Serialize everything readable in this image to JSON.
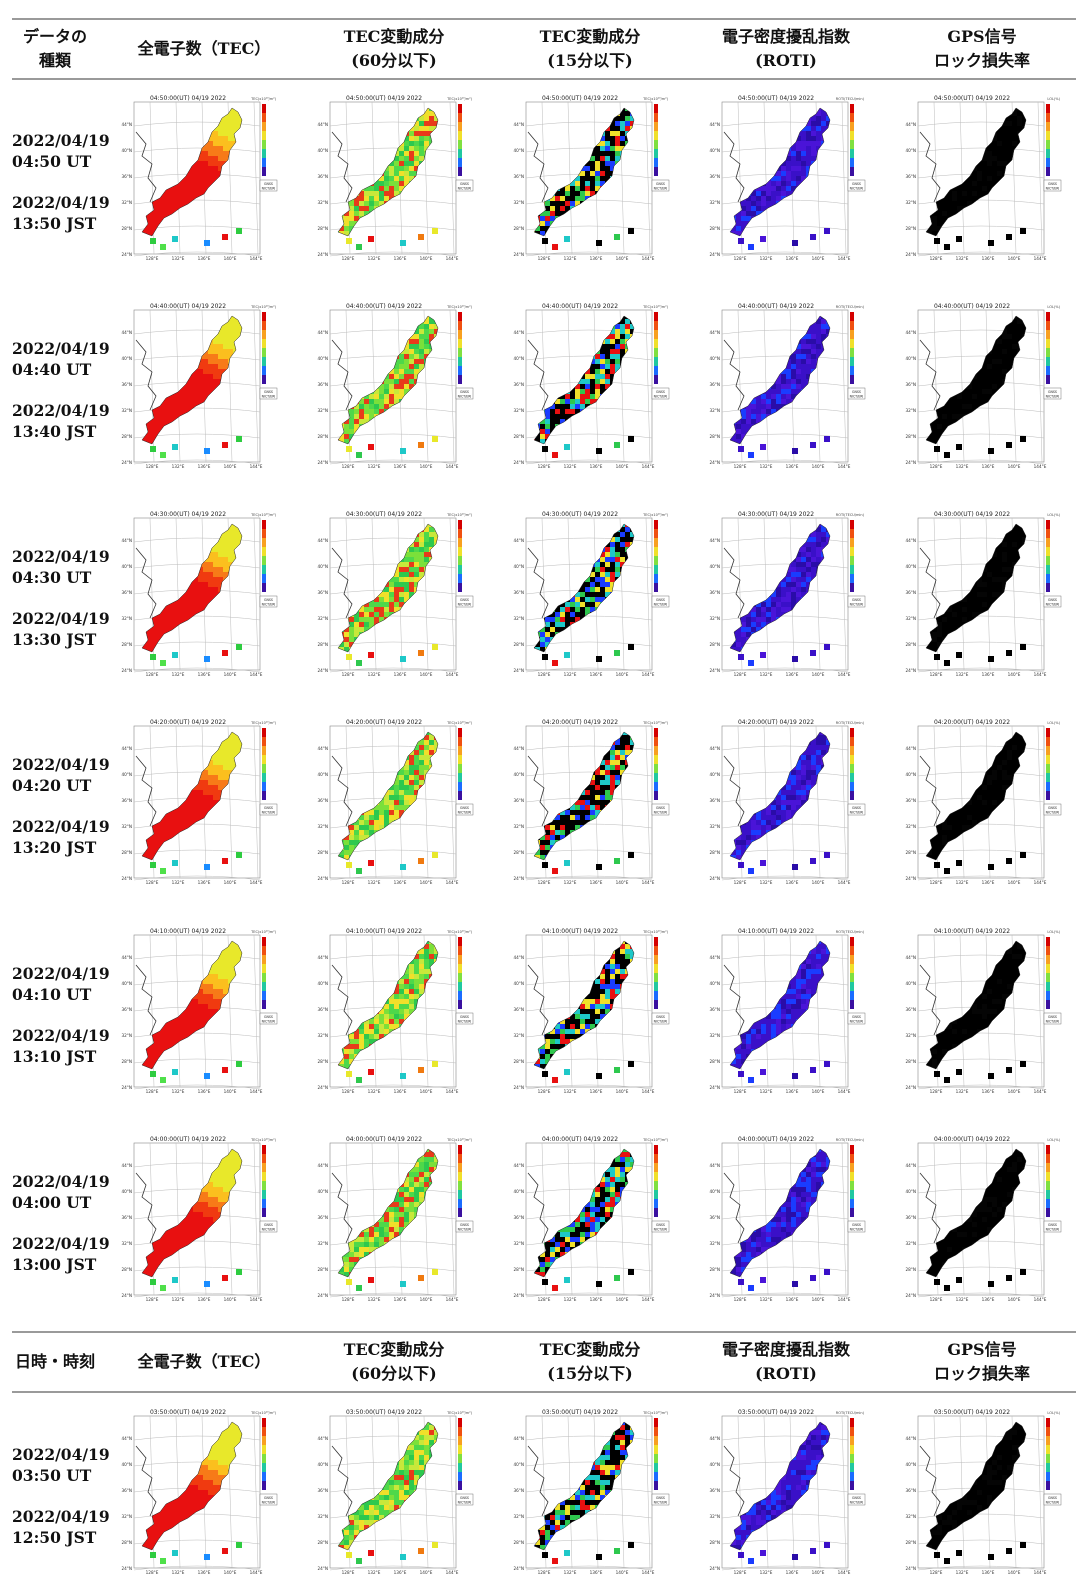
{
  "header_top": {
    "col0": [
      "データの",
      "種類"
    ],
    "col1": [
      "全電子数（TEC）"
    ],
    "col2": [
      "TEC変動成分",
      "(60分以下)"
    ],
    "col3": [
      "TEC変動成分",
      "(15分以下)"
    ],
    "col4": [
      "電子密度擾乱指数",
      "(ROTI)"
    ],
    "col5": [
      "GPS信号",
      "ロック損失率"
    ]
  },
  "header_mid": {
    "col0": [
      "日時・時刻"
    ],
    "col1": [
      "全電子数（TEC）"
    ],
    "col2": [
      "TEC変動成分",
      "(60分以下)"
    ],
    "col3": [
      "TEC変動成分",
      "(15分以下)"
    ],
    "col4": [
      "電子密度擾乱指数",
      "(ROTI)"
    ],
    "col5": [
      "GPS信号",
      "ロック損失率"
    ]
  },
  "rows": [
    {
      "date_ut": "2022/04/19",
      "time_ut": "04:50 UT",
      "date_jst": "2022/04/19",
      "time_jst": "13:50 JST",
      "map_title": "04:50:00(UT) 04/19 2022"
    },
    {
      "date_ut": "2022/04/19",
      "time_ut": "04:40 UT",
      "date_jst": "2022/04/19",
      "time_jst": "13:40 JST",
      "map_title": "04:40:00(UT) 04/19 2022"
    },
    {
      "date_ut": "2022/04/19",
      "time_ut": "04:30 UT",
      "date_jst": "2022/04/19",
      "time_jst": "13:30 JST",
      "map_title": "04:30:00(UT) 04/19 2022"
    },
    {
      "date_ut": "2022/04/19",
      "time_ut": "04:20 UT",
      "date_jst": "2022/04/19",
      "time_jst": "13:20 JST",
      "map_title": "04:20:00(UT) 04/19 2022"
    },
    {
      "date_ut": "2022/04/19",
      "time_ut": "04:10 UT",
      "date_jst": "2022/04/19",
      "time_jst": "13:10 JST",
      "map_title": "04:10:00(UT) 04/19 2022"
    },
    {
      "date_ut": "2022/04/19",
      "time_ut": "04:00 UT",
      "date_jst": "2022/04/19",
      "time_jst": "13:00 JST",
      "map_title": "04:00:00(UT) 04/19 2022"
    },
    {
      "date_ut": "2022/04/19",
      "time_ut": "03:50 UT",
      "date_jst": "2022/04/19",
      "time_jst": "12:50 JST",
      "map_title": "03:50:00(UT) 04/19 2022"
    }
  ],
  "map_axes": {
    "lat_ticks": [
      "44°N",
      "40°N",
      "36°N",
      "32°N",
      "28°N",
      "24°N"
    ],
    "lon_ticks": [
      "128°E",
      "132°E",
      "136°E",
      "140°E",
      "144°E"
    ]
  },
  "colorbar_units": [
    "TEC(x10¹⁶/m²)",
    "TEC(x10¹⁶/m²)",
    "TEC(x10¹⁶/m²)",
    "ROTI(TECU/min)",
    "LOL(%)"
  ],
  "badge_text": [
    "GNSS",
    "NICT/ERI"
  ],
  "column_styles": [
    {
      "name": "tec",
      "colors": [
        "#e81010",
        "#f03a10",
        "#f77a18",
        "#fbbf1e",
        "#e8e82a"
      ],
      "isles": [
        "#2ecc40",
        "#4fe04a",
        "#1ec8c8",
        "#1a8cff",
        "#e81010"
      ]
    },
    {
      "name": "tec60",
      "colors": [
        "#4ed84a",
        "#7be03a",
        "#2ec84e",
        "#c8e83a",
        "#f0e02a",
        "#e83a1a"
      ],
      "isles": [
        "#e8e82a",
        "#2ec84e",
        "#e81010",
        "#1ec8c8",
        "#f07a10"
      ]
    },
    {
      "name": "tec15",
      "colors": [
        "#000000",
        "#000000",
        "#e81010",
        "#1a3cff",
        "#2ec84e",
        "#f0e02a",
        "#1ec8c8",
        "#000000"
      ],
      "isles": [
        "#000000",
        "#e81010",
        "#1ec8c8",
        "#000000",
        "#2ec84e"
      ]
    },
    {
      "name": "roti",
      "colors": [
        "#3a10c8",
        "#4a14d8",
        "#2a0ca8",
        "#3a10c8",
        "#1a3cff"
      ],
      "isles": [
        "#3a10c8",
        "#1a3cff",
        "#4a14d8",
        "#2a0ca8",
        "#3a10c8"
      ]
    },
    {
      "name": "lol",
      "colors": [
        "#000000",
        "#000000",
        "#050505",
        "#000000"
      ],
      "isles": [
        "#000000",
        "#000000",
        "#000000",
        "#000000",
        "#000000"
      ]
    }
  ]
}
